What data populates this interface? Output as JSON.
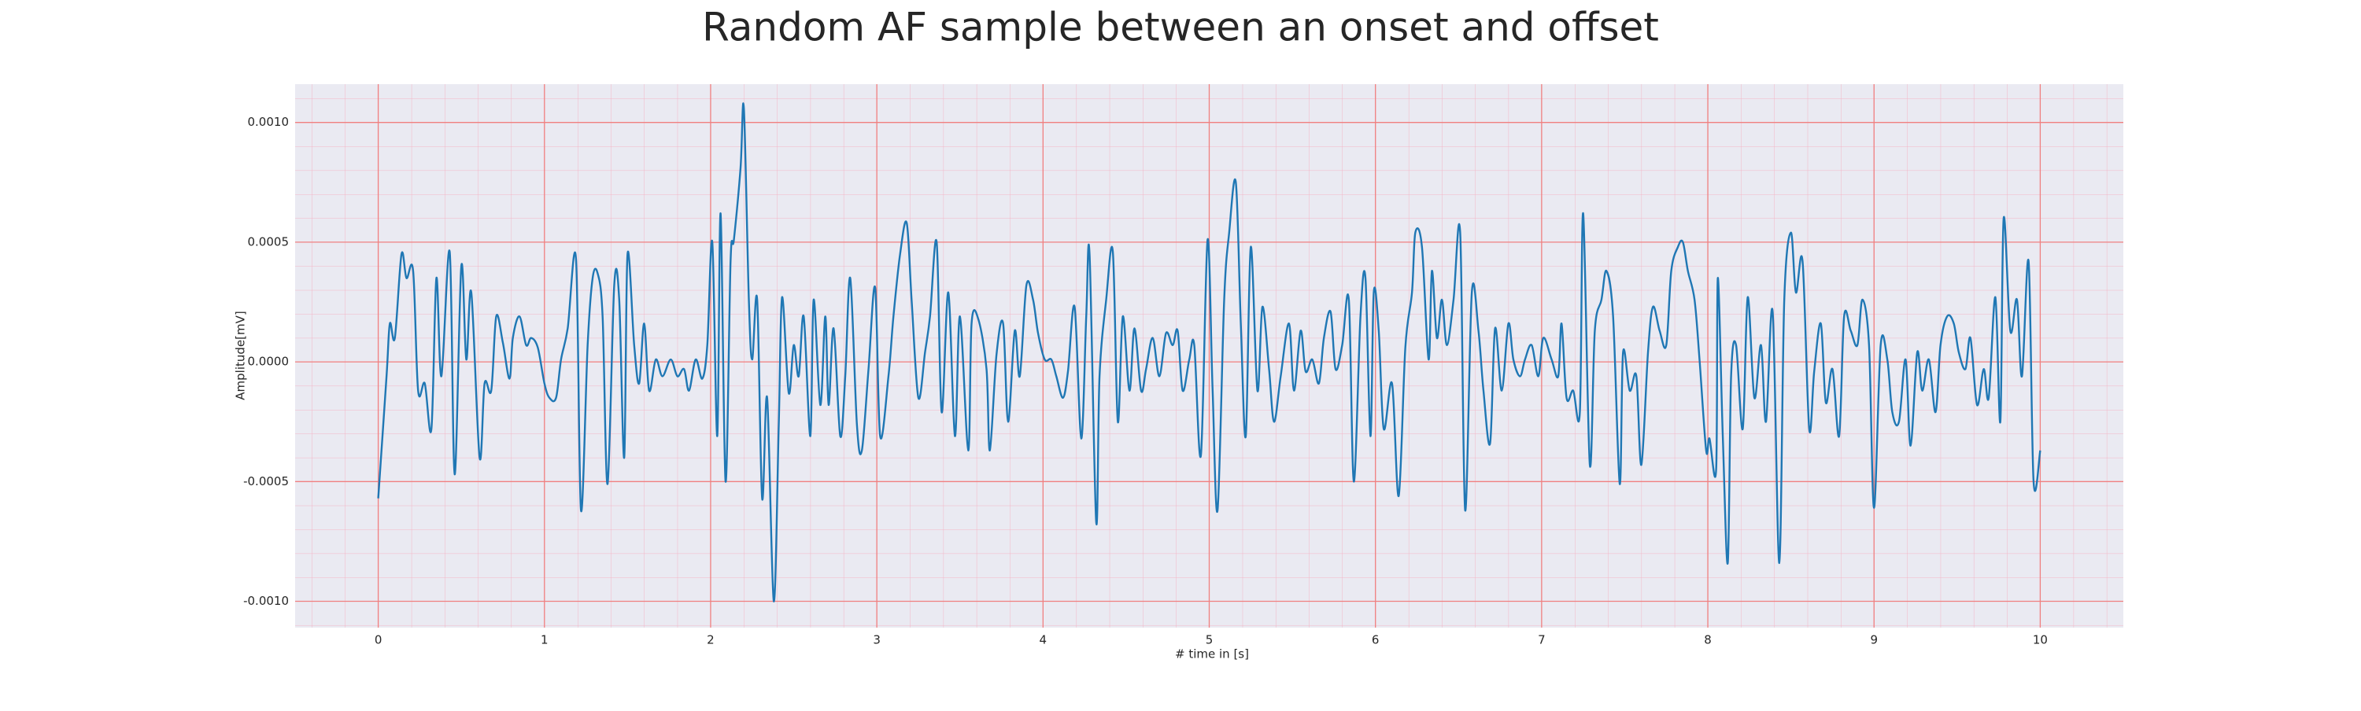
{
  "chart_data": {
    "type": "line",
    "title": "Random AF sample between an onset and offset",
    "xlabel": "# time in [s]",
    "ylabel": "Amplitude[mV]",
    "color": "#1f77b4",
    "grid": true,
    "xlim": [
      -0.5,
      10.5
    ],
    "ylim": [
      -0.00111,
      0.00116
    ],
    "xticks": [
      0,
      1,
      2,
      3,
      4,
      5,
      6,
      7,
      8,
      9,
      10
    ],
    "yticks": [
      {
        "value": -0.001,
        "label": "-0.0010"
      },
      {
        "value": -0.0005,
        "label": "-0.0005"
      },
      {
        "value": 0,
        "label": "0.0000"
      },
      {
        "value": 0.0005,
        "label": "0.0005"
      },
      {
        "value": 0.001,
        "label": "0.0010"
      }
    ],
    "x": [
      0,
      0.05,
      0.07,
      0.1,
      0.14,
      0.17,
      0.21,
      0.24,
      0.28,
      0.32,
      0.35,
      0.38,
      0.43,
      0.46,
      0.5,
      0.53,
      0.56,
      0.61,
      0.64,
      0.68,
      0.71,
      0.75,
      0.79,
      0.81,
      0.85,
      0.89,
      0.92,
      0.96,
      1.0,
      1.03,
      1.07,
      1.1,
      1.14,
      1.19,
      1.22,
      1.26,
      1.29,
      1.32,
      1.35,
      1.38,
      1.42,
      1.45,
      1.48,
      1.5,
      1.54,
      1.57,
      1.6,
      1.63,
      1.67,
      1.71,
      1.76,
      1.8,
      1.84,
      1.87,
      1.91,
      1.95,
      1.98,
      2.01,
      2.04,
      2.06,
      2.09,
      2.12,
      2.14,
      2.18,
      2.2,
      2.23,
      2.25,
      2.28,
      2.31,
      2.34,
      2.38,
      2.41,
      2.43,
      2.47,
      2.5,
      2.53,
      2.56,
      2.6,
      2.62,
      2.66,
      2.69,
      2.71,
      2.74,
      2.78,
      2.81,
      2.84,
      2.88,
      2.91,
      2.95,
      2.99,
      3.02,
      3.07,
      3.1,
      3.14,
      3.18,
      3.21,
      3.25,
      3.29,
      3.32,
      3.36,
      3.39,
      3.43,
      3.47,
      3.5,
      3.55,
      3.57,
      3.61,
      3.66,
      3.68,
      3.72,
      3.76,
      3.79,
      3.83,
      3.86,
      3.9,
      3.94,
      3.97,
      4.01,
      4.05,
      4.08,
      4.12,
      4.15,
      4.19,
      4.23,
      4.26,
      4.28,
      4.32,
      4.34,
      4.38,
      4.42,
      4.45,
      4.48,
      4.52,
      4.55,
      4.59,
      4.62,
      4.66,
      4.7,
      4.74,
      4.78,
      4.81,
      4.84,
      4.88,
      4.91,
      4.95,
      4.99,
      5.02,
      5.05,
      5.09,
      5.12,
      5.16,
      5.19,
      5.22,
      5.25,
      5.29,
      5.32,
      5.36,
      5.39,
      5.43,
      5.48,
      5.51,
      5.55,
      5.58,
      5.62,
      5.66,
      5.69,
      5.73,
      5.76,
      5.8,
      5.84,
      5.87,
      5.91,
      5.94,
      5.97,
      5.99,
      6.02,
      6.05,
      6.1,
      6.14,
      6.18,
      6.22,
      6.24,
      6.28,
      6.32,
      6.34,
      6.37,
      6.4,
      6.43,
      6.47,
      6.51,
      6.54,
      6.58,
      6.62,
      6.65,
      6.69,
      6.72,
      6.76,
      6.8,
      6.83,
      6.87,
      6.9,
      6.94,
      6.98,
      7.01,
      7.06,
      7.1,
      7.12,
      7.15,
      7.19,
      7.23,
      7.25,
      7.29,
      7.32,
      7.36,
      7.39,
      7.43,
      7.47,
      7.49,
      7.53,
      7.57,
      7.6,
      7.64,
      7.67,
      7.71,
      7.75,
      7.78,
      7.82,
      7.85,
      7.88,
      7.92,
      7.95,
      7.99,
      8.01,
      8.05,
      8.06,
      8.09,
      8.12,
      8.14,
      8.17,
      8.21,
      8.24,
      8.28,
      8.32,
      8.35,
      8.39,
      8.43,
      8.46,
      8.5,
      8.53,
      8.57,
      8.61,
      8.64,
      8.68,
      8.71,
      8.75,
      8.79,
      8.82,
      8.86,
      8.9,
      8.93,
      8.97,
      9.0,
      9.04,
      9.08,
      9.11,
      9.15,
      9.19,
      9.22,
      9.26,
      9.29,
      9.33,
      9.37,
      9.4,
      9.44,
      9.48,
      9.51,
      9.55,
      9.58,
      9.62,
      9.66,
      9.69,
      9.73,
      9.76,
      9.78,
      9.82,
      9.86,
      9.89,
      9.93,
      9.96,
      10.0
    ],
    "values": [
      -0.00057,
      -6e-05,
      0.00016,
      0.0001,
      0.00045,
      0.00035,
      0.00038,
      -0.00012,
      -9e-05,
      -0.00028,
      0.00035,
      -6e-05,
      0.00046,
      -0.00047,
      0.0004,
      1e-05,
      0.00029,
      -0.0004,
      -9e-05,
      -0.00012,
      0.00019,
      8e-05,
      -7e-05,
      0.0001,
      0.00019,
      7e-05,
      0.0001,
      6e-05,
      -9e-05,
      -0.00015,
      -0.00015,
      1e-05,
      0.00014,
      0.00043,
      -0.00062,
      7e-05,
      0.00035,
      0.00037,
      0.00019,
      -0.00051,
      0.00032,
      0.00026,
      -0.0004,
      0.00045,
      7e-05,
      -9e-05,
      0.00016,
      -0.00012,
      1e-05,
      -6e-05,
      1e-05,
      -6e-05,
      -3e-05,
      -0.00012,
      1e-05,
      -7e-05,
      7e-05,
      0.0005,
      -0.00031,
      0.00062,
      -0.0005,
      0.00042,
      0.00051,
      0.00081,
      0.00106,
      0.00026,
      1e-05,
      0.00026,
      -0.00057,
      -0.00015,
      -0.001,
      -0.00026,
      0.00027,
      -0.00013,
      7e-05,
      -6e-05,
      0.00019,
      -0.00031,
      0.00026,
      -0.00018,
      0.00019,
      -0.00018,
      0.00014,
      -0.00031,
      -6e-05,
      0.00035,
      -0.00026,
      -0.00037,
      -3e-05,
      0.00031,
      -0.00031,
      -6e-05,
      0.00019,
      0.00045,
      0.00058,
      0.00025,
      -0.00015,
      4e-05,
      0.00019,
      0.0005,
      -0.00021,
      0.00029,
      -0.00031,
      0.00019,
      -0.00037,
      0.00016,
      0.00018,
      -3e-05,
      -0.00037,
      3e-05,
      0.00016,
      -0.00025,
      0.00013,
      -6e-05,
      0.00032,
      0.00026,
      0.00012,
      1e-05,
      1e-05,
      -6e-05,
      -0.00015,
      -4e-05,
      0.00023,
      -0.00032,
      0.00019,
      0.00045,
      -0.00067,
      -6e-05,
      0.00026,
      0.00046,
      -0.00025,
      0.00019,
      -0.00012,
      0.00014,
      -0.00012,
      -3e-05,
      0.0001,
      -6e-05,
      0.00012,
      7e-05,
      0.00013,
      -0.00012,
      1e-05,
      7e-05,
      -0.00039,
      0.00051,
      -0.00011,
      -0.00062,
      0.00026,
      0.00054,
      0.00075,
      0.00016,
      -0.00031,
      0.00048,
      -0.00012,
      0.00023,
      -3e-05,
      -0.00025,
      -6e-05,
      0.00016,
      -0.00012,
      0.00013,
      -4e-05,
      1e-05,
      -9e-05,
      0.0001,
      0.00021,
      -3e-05,
      7e-05,
      0.00026,
      -0.0005,
      0.00019,
      0.00035,
      -0.00031,
      0.00029,
      0.00013,
      -0.00028,
      -9e-05,
      -0.00056,
      6e-05,
      0.00029,
      0.00054,
      0.00048,
      1e-05,
      0.00038,
      0.0001,
      0.00026,
      7e-05,
      0.00026,
      0.00054,
      -0.00062,
      0.00029,
      0.00013,
      -0.00012,
      -0.00034,
      0.00014,
      -0.00012,
      0.00016,
      1e-05,
      -6e-05,
      1e-05,
      7e-05,
      -6e-05,
      0.0001,
      1e-05,
      -6e-05,
      0.00016,
      -0.00015,
      -0.00012,
      -0.00021,
      0.00062,
      -0.00043,
      0.00013,
      0.00026,
      0.00038,
      0.00019,
      -0.00051,
      4e-05,
      -0.00012,
      -6e-05,
      -0.00043,
      4e-05,
      0.00023,
      0.00013,
      7e-05,
      0.00038,
      0.00048,
      0.0005,
      0.00038,
      0.00026,
      1e-05,
      -0.00037,
      -0.00032,
      -0.00045,
      0.00035,
      -0.00031,
      -0.00084,
      -6e-05,
      7e-05,
      -0.00028,
      0.00027,
      -0.00015,
      7e-05,
      -0.00025,
      0.00021,
      -0.00084,
      0.00026,
      0.00054,
      0.00029,
      0.00042,
      -0.00028,
      -4e-05,
      0.00016,
      -0.00017,
      -3e-05,
      -0.00031,
      0.00019,
      0.00013,
      7e-05,
      0.00026,
      7e-05,
      -0.00061,
      7e-05,
      1e-05,
      -0.00021,
      -0.00025,
      1e-05,
      -0.00035,
      4e-05,
      -0.00012,
      1e-05,
      -0.00021,
      7e-05,
      0.00019,
      0.00016,
      4e-05,
      -3e-05,
      0.0001,
      -0.00018,
      -3e-05,
      -0.00015,
      0.00027,
      -0.00025,
      0.0006,
      0.00013,
      0.00026,
      -6e-05,
      0.00042,
      -0.0005,
      -0.00037
    ]
  }
}
